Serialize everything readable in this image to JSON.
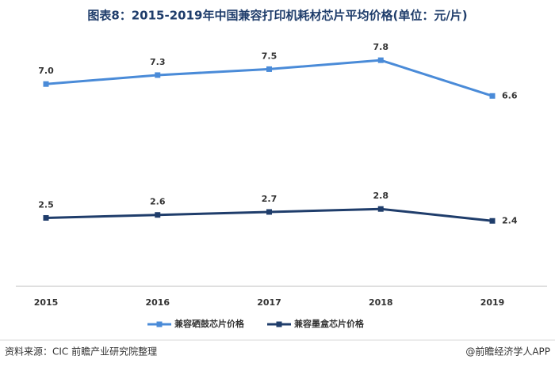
{
  "chart_data": {
    "type": "line",
    "title": "图表8：2015-2019年中国兼容打印机耗材芯片平均价格(单位：元/片)",
    "categories": [
      "2015",
      "2016",
      "2017",
      "2018",
      "2019"
    ],
    "series": [
      {
        "name": "兼容硒鼓芯片价格",
        "color": "#4a8bd8",
        "values": [
          7.0,
          7.3,
          7.5,
          7.8,
          6.6
        ],
        "value_labels": [
          "7.0",
          "7.3",
          "7.5",
          "7.8",
          "6.6"
        ]
      },
      {
        "name": "兼容墨盒芯片价格",
        "color": "#1f3d6b",
        "values": [
          2.5,
          2.6,
          2.7,
          2.8,
          2.4
        ],
        "value_labels": [
          "2.5",
          "2.6",
          "2.7",
          "2.8",
          "2.4"
        ]
      }
    ],
    "ylim": [
      0.2,
      9
    ],
    "source": "资料来源：CIC 前瞻产业研究院整理",
    "credit": "@前瞻经济学人APP"
  }
}
